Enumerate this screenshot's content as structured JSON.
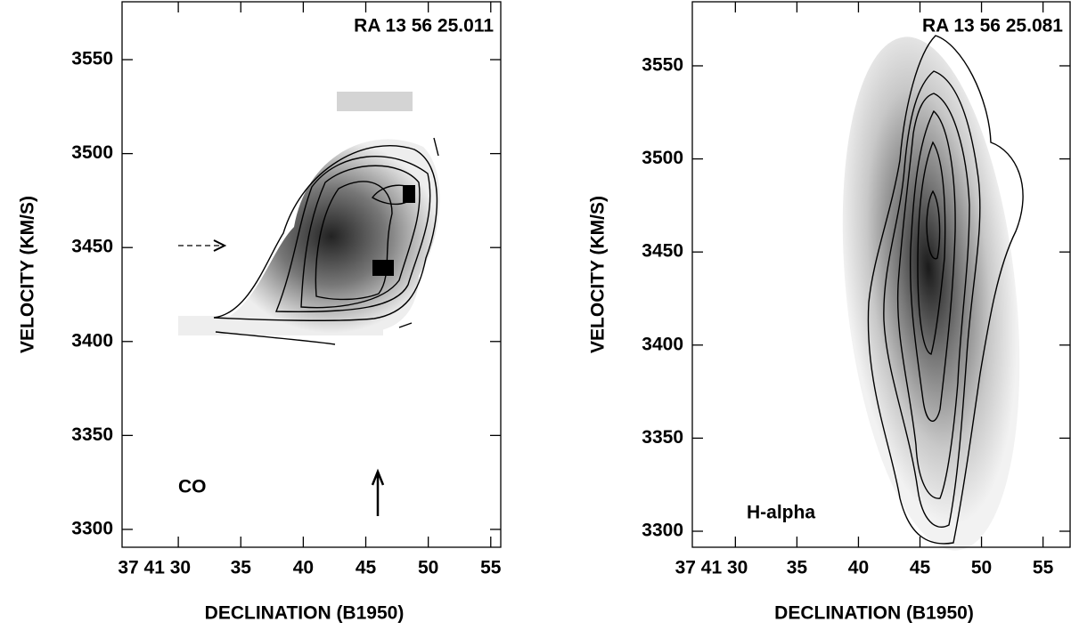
{
  "chart_data": [
    {
      "type": "contour",
      "title": "RA 13 56 25.011",
      "annotation": "CO",
      "x_label": "DECLINATION (B1950)",
      "y_label": "VELOCITY  (KM/S)",
      "xlim": [
        25.5,
        55.8
      ],
      "xticks": [
        {
          "value": 30,
          "label": "37 41 30"
        },
        35,
        40,
        45,
        50,
        55
      ],
      "ylim": [
        3290.5,
        3580.8
      ],
      "yticks": [
        3300,
        3350,
        3400,
        3450,
        3500,
        3550
      ]
    },
    {
      "type": "contour",
      "title": "RA 13 56 25.081",
      "annotation": "H-alpha",
      "x_label": "DECLINATION (B1950)",
      "y_label": "VELOCITY  (KM/S)",
      "xlim": [
        26.5,
        57.2
      ],
      "xticks": [
        {
          "value": 30,
          "label": "37 41 30"
        },
        35,
        40,
        45,
        50,
        55
      ],
      "ylim": [
        3291.4,
        3584.4
      ],
      "yticks": [
        3300,
        3350,
        3400,
        3450,
        3500,
        3550
      ]
    }
  ]
}
